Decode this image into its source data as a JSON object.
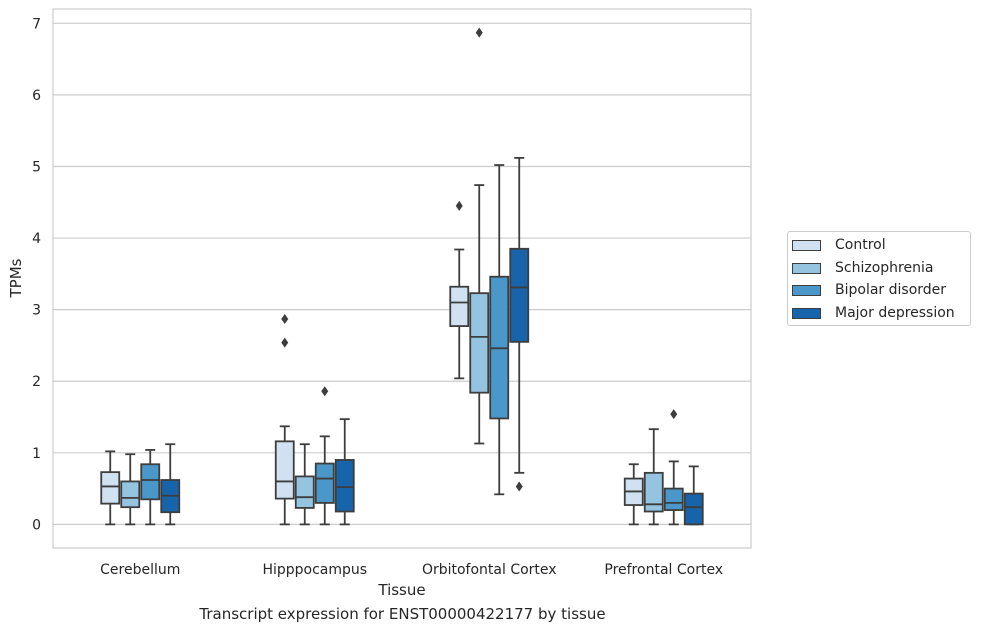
{
  "chart_data": {
    "type": "boxplot",
    "xlabel": "Tissue",
    "ylabel": "TPMs",
    "caption": "Transcript expression for ENST00000422177 by tissue",
    "categories": [
      "Cerebellum",
      "Hipppocampus",
      "Orbitofontal Cortex",
      "Prefrontal Cortex"
    ],
    "ylim": [
      -0.33,
      7.2
    ],
    "yticks": [
      "0",
      "1",
      "2",
      "3",
      "4",
      "5",
      "6",
      "7"
    ],
    "grid": "horizontal",
    "legend_position": "right",
    "series": [
      {
        "name": "Control",
        "color": "#d0e1f2",
        "boxes": [
          {
            "min": 0.0,
            "q1": 0.29,
            "median": 0.53,
            "q3": 0.73,
            "max": 1.02,
            "outliers": []
          },
          {
            "min": 0.0,
            "q1": 0.36,
            "median": 0.6,
            "q3": 1.16,
            "max": 1.37,
            "outliers": [
              2.87,
              2.54
            ]
          },
          {
            "min": 2.04,
            "q1": 2.77,
            "median": 3.1,
            "q3": 3.32,
            "max": 3.84,
            "outliers": [
              4.45
            ]
          },
          {
            "min": 0.0,
            "q1": 0.27,
            "median": 0.46,
            "q3": 0.64,
            "max": 0.84,
            "outliers": []
          }
        ]
      },
      {
        "name": "Schizophrenia",
        "color": "#94c4df",
        "boxes": [
          {
            "min": 0.0,
            "q1": 0.24,
            "median": 0.37,
            "q3": 0.6,
            "max": 0.98,
            "outliers": []
          },
          {
            "min": 0.0,
            "q1": 0.23,
            "median": 0.38,
            "q3": 0.67,
            "max": 1.12,
            "outliers": []
          },
          {
            "min": 1.13,
            "q1": 1.84,
            "median": 2.62,
            "q3": 3.23,
            "max": 4.74,
            "outliers": [
              6.87
            ]
          },
          {
            "min": 0.0,
            "q1": 0.18,
            "median": 0.28,
            "q3": 0.72,
            "max": 1.33,
            "outliers": []
          }
        ]
      },
      {
        "name": "Bipolar disorder",
        "color": "#4a98c9",
        "boxes": [
          {
            "min": 0.0,
            "q1": 0.35,
            "median": 0.62,
            "q3": 0.84,
            "max": 1.04,
            "outliers": []
          },
          {
            "min": 0.0,
            "q1": 0.3,
            "median": 0.64,
            "q3": 0.85,
            "max": 1.23,
            "outliers": [
              1.86
            ]
          },
          {
            "min": 0.42,
            "q1": 1.48,
            "median": 2.46,
            "q3": 3.46,
            "max": 5.02,
            "outliers": []
          },
          {
            "min": 0.0,
            "q1": 0.2,
            "median": 0.3,
            "q3": 0.5,
            "max": 0.88,
            "outliers": [
              1.54
            ]
          }
        ]
      },
      {
        "name": "Major depression",
        "color": "#1764ab",
        "boxes": [
          {
            "min": 0.0,
            "q1": 0.17,
            "median": 0.4,
            "q3": 0.62,
            "max": 1.12,
            "outliers": []
          },
          {
            "min": 0.0,
            "q1": 0.18,
            "median": 0.52,
            "q3": 0.9,
            "max": 1.47,
            "outliers": []
          },
          {
            "min": 0.72,
            "q1": 2.55,
            "median": 3.31,
            "q3": 3.85,
            "max": 5.12,
            "outliers": [
              0.53
            ]
          },
          {
            "min": 0.0,
            "q1": 0.0,
            "median": 0.24,
            "q3": 0.43,
            "max": 0.81,
            "outliers": []
          }
        ]
      }
    ]
  }
}
